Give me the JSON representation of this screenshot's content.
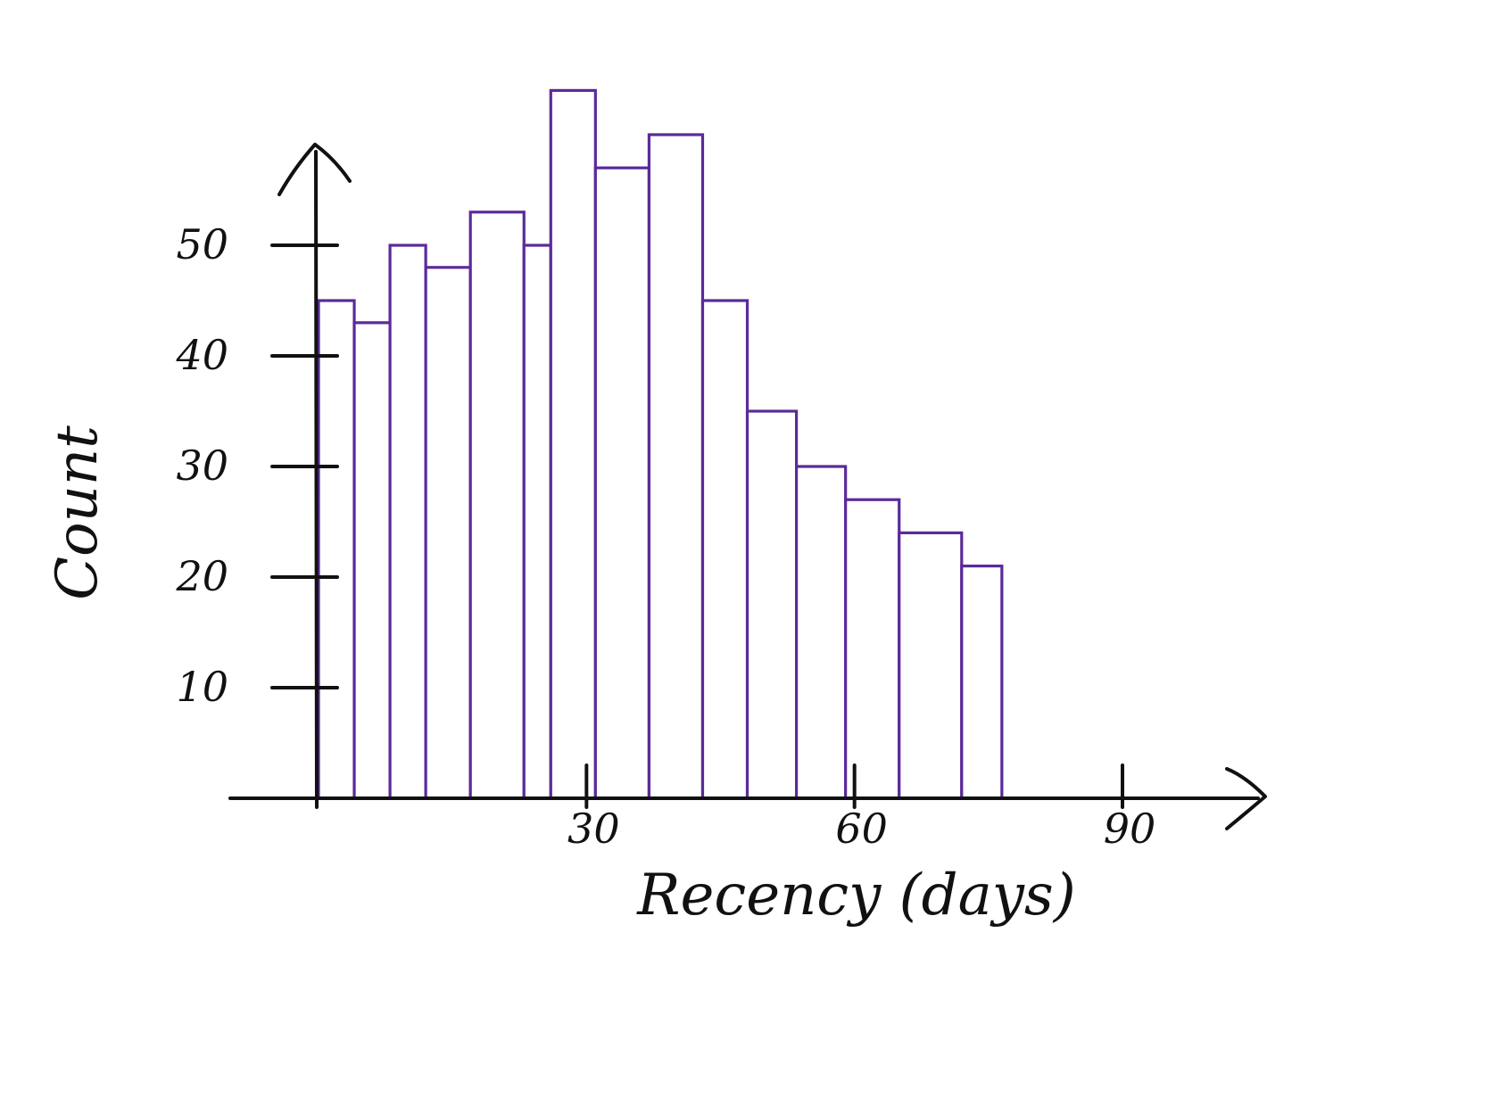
{
  "chart_data": {
    "type": "bar",
    "title": "",
    "xlabel": "Recency (days)",
    "ylabel": "Count",
    "x_ticks": [
      "30",
      "60",
      "90"
    ],
    "x_tick_values": [
      30,
      60,
      90
    ],
    "y_ticks": [
      "10",
      "20",
      "30",
      "40",
      "50"
    ],
    "y_tick_values": [
      10,
      20,
      30,
      40,
      50
    ],
    "xlim": [
      0,
      90
    ],
    "ylim": [
      0,
      65
    ],
    "grid": false,
    "legend": "none",
    "bins": [
      {
        "start": 0,
        "end": 4,
        "value": 45
      },
      {
        "start": 4,
        "end": 8,
        "value": 43
      },
      {
        "start": 8,
        "end": 12,
        "value": 50
      },
      {
        "start": 12,
        "end": 17,
        "value": 48
      },
      {
        "start": 17,
        "end": 23,
        "value": 53
      },
      {
        "start": 23,
        "end": 26,
        "value": 50
      },
      {
        "start": 26,
        "end": 31,
        "value": 64
      },
      {
        "start": 31,
        "end": 37,
        "value": 57
      },
      {
        "start": 37,
        "end": 43,
        "value": 60
      },
      {
        "start": 43,
        "end": 48,
        "value": 45
      },
      {
        "start": 48,
        "end": 53.5,
        "value": 35
      },
      {
        "start": 53.5,
        "end": 59,
        "value": 30
      },
      {
        "start": 59,
        "end": 65,
        "value": 27
      },
      {
        "start": 65,
        "end": 72,
        "value": 24
      },
      {
        "start": 72,
        "end": 76.5,
        "value": 21
      }
    ],
    "bar_color": "#5b2a9a",
    "axis_color": "#111111"
  }
}
